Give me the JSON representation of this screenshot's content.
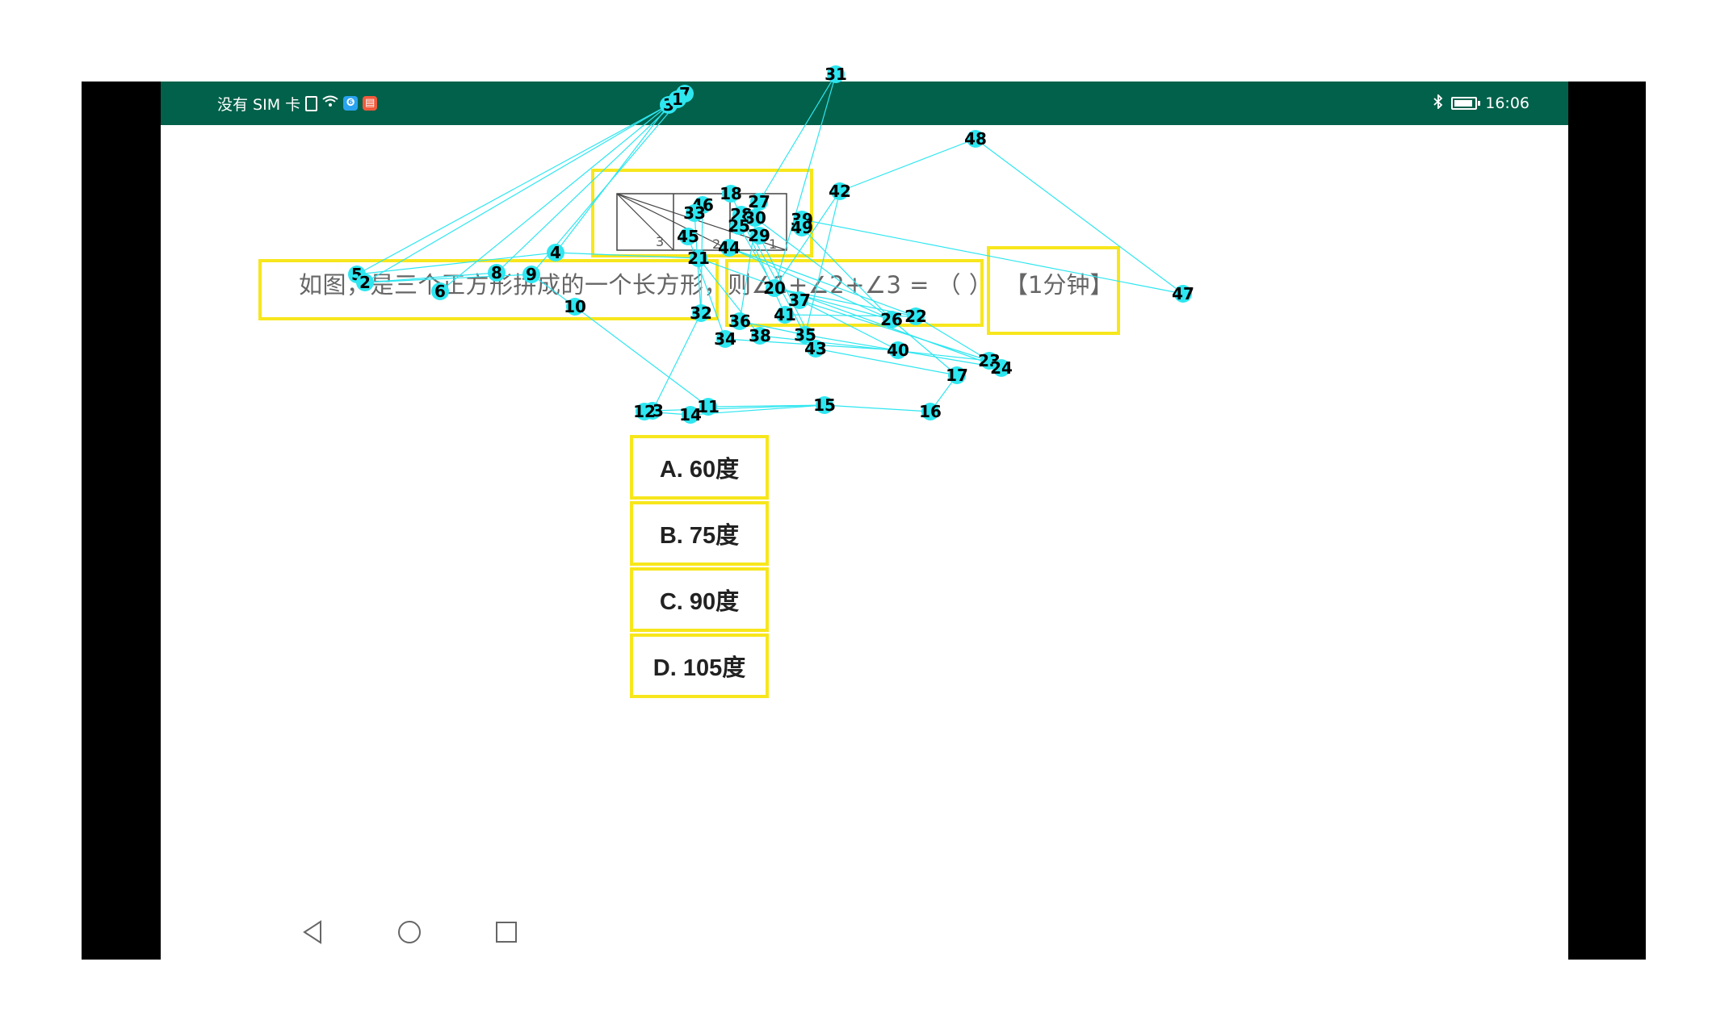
{
  "status_bar": {
    "carrier": "没有 SIM 卡",
    "time": "16:06",
    "bg_color": "#02614a"
  },
  "question": {
    "text": "如图，是三个正方形拼成的一个长方形，则∠1+∠2+∠3 = （ ）",
    "timer": "【1分钟】",
    "figure_labels": [
      "3",
      "2",
      "1"
    ]
  },
  "options": [
    {
      "label": "A. 60度"
    },
    {
      "label": "B. 75度"
    },
    {
      "label": "C. 90度"
    },
    {
      "label": "D. 105度"
    }
  ],
  "nav": {
    "back": "back-icon",
    "home": "home-icon",
    "recent": "recent-apps-icon"
  },
  "annotation_overlay": {
    "point_color": "#2ee6f0",
    "line_color": "#2ee6f0",
    "box_color": "#f7e61c",
    "markers": [
      {
        "id": "31"
      },
      {
        "id": "7"
      },
      {
        "id": "3"
      },
      {
        "id": "1"
      },
      {
        "id": "48"
      },
      {
        "id": "18"
      },
      {
        "id": "27"
      },
      {
        "id": "46"
      },
      {
        "id": "33"
      },
      {
        "id": "28"
      },
      {
        "id": "30"
      },
      {
        "id": "25"
      },
      {
        "id": "39"
      },
      {
        "id": "49"
      },
      {
        "id": "42"
      },
      {
        "id": "45"
      },
      {
        "id": "29"
      },
      {
        "id": "44"
      },
      {
        "id": "21"
      },
      {
        "id": "4"
      },
      {
        "id": "5"
      },
      {
        "id": "2"
      },
      {
        "id": "8"
      },
      {
        "id": "9"
      },
      {
        "id": "6"
      },
      {
        "id": "10"
      },
      {
        "id": "20"
      },
      {
        "id": "37"
      },
      {
        "id": "47"
      },
      {
        "id": "32"
      },
      {
        "id": "41"
      },
      {
        "id": "26"
      },
      {
        "id": "22"
      },
      {
        "id": "36"
      },
      {
        "id": "34"
      },
      {
        "id": "38"
      },
      {
        "id": "35"
      },
      {
        "id": "43"
      },
      {
        "id": "40"
      },
      {
        "id": "23"
      },
      {
        "id": "24"
      },
      {
        "id": "17"
      },
      {
        "id": "13"
      },
      {
        "id": "12"
      },
      {
        "id": "14"
      },
      {
        "id": "11"
      },
      {
        "id": "15"
      },
      {
        "id": "16"
      }
    ]
  }
}
